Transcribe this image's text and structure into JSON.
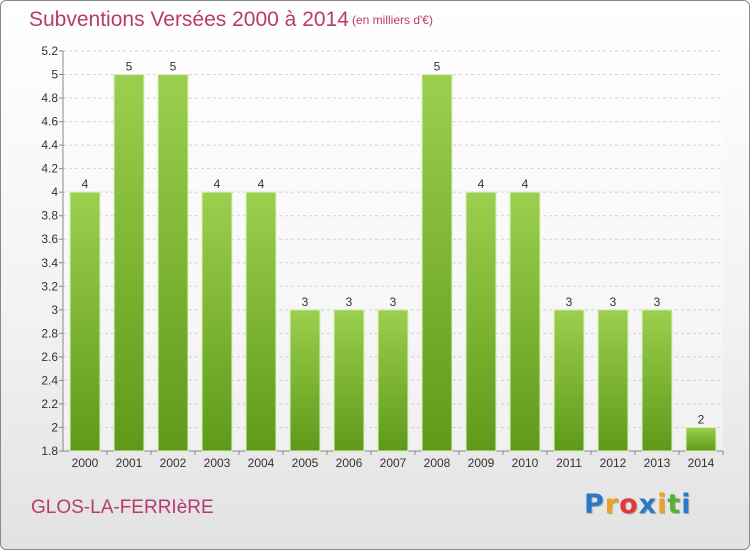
{
  "header": {
    "title": "Subventions Versées 2000 à 2014",
    "subtitle": "(en milliers d'€)"
  },
  "footer": {
    "city": "GLOS-LA-FERRIèRE",
    "logo": {
      "text": "Proxiti",
      "letters": [
        "P",
        "r",
        "o",
        "x",
        "i",
        "t",
        "i"
      ],
      "colors": [
        "#2a78c8",
        "#f0a020",
        "#e23838",
        "#2a78c8",
        "#f0a020",
        "#58b030",
        "#2a78c8"
      ]
    }
  },
  "colors": {
    "bar_top": "#9ccf4e",
    "bar_bottom": "#5e9a18",
    "bar_edge": "#d8eec0",
    "accent_text": "#b83a6e"
  },
  "chart_data": {
    "type": "bar",
    "title": "Subventions Versées 2000 à 2014",
    "subtitle": "(en milliers d'€)",
    "categories": [
      "2000",
      "2001",
      "2002",
      "2003",
      "2004",
      "2005",
      "2006",
      "2007",
      "2008",
      "2009",
      "2010",
      "2011",
      "2012",
      "2013",
      "2014"
    ],
    "values": [
      4.0,
      5.0,
      5.0,
      4.0,
      4.0,
      3.0,
      3.0,
      3.0,
      5.0,
      4.0,
      4.0,
      3.0,
      3.0,
      3.0,
      2.0
    ],
    "data_labels": [
      "4",
      "5",
      "5",
      "4",
      "4",
      "3",
      "3",
      "3",
      "5",
      "4",
      "4",
      "3",
      "3",
      "3",
      "2"
    ],
    "ylim": [
      1.8,
      5.2
    ],
    "y_ticks": [
      "1.8",
      "2",
      "2.2",
      "2.4",
      "2.6",
      "2.8",
      "3",
      "3.2",
      "3.4",
      "3.6",
      "3.8",
      "4",
      "4.2",
      "4.4",
      "4.6",
      "4.8",
      "5",
      "5.2"
    ],
    "y_tick_values": [
      1.8,
      2.0,
      2.2,
      2.4,
      2.6,
      2.8,
      3.0,
      3.2,
      3.4,
      3.6,
      3.8,
      4.0,
      4.2,
      4.4,
      4.6,
      4.8,
      5.0,
      5.2
    ],
    "xlabel": "",
    "ylabel": "",
    "grid": true
  }
}
